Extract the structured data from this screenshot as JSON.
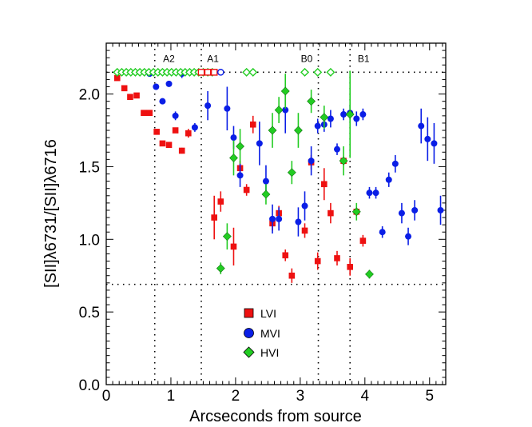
{
  "chart_data": {
    "type": "scatter",
    "xlabel": "Arcseconds from source",
    "ylabel": "[SII]λ6731/[SII]λ6716",
    "xlim": [
      0,
      5.25
    ],
    "ylim": [
      0,
      2.35
    ],
    "xticks": [
      0,
      1,
      2,
      3,
      4,
      5
    ],
    "xtick_labels": [
      "0",
      "1",
      "2",
      "3",
      "4",
      "5"
    ],
    "yticks": [
      0,
      0.5,
      1.0,
      1.5,
      2.0
    ],
    "ytick_labels": [
      "0.0",
      "0.5",
      "1.0",
      "1.5",
      "2.0"
    ],
    "reference_lines": {
      "horizontal": [
        2.15,
        0.69
      ],
      "vertical": [
        0.75,
        1.47,
        3.28,
        3.77
      ]
    },
    "region_labels": [
      {
        "label": "A2",
        "x": 0.97,
        "y": 2.22
      },
      {
        "label": "A1",
        "x": 1.65,
        "y": 2.22
      },
      {
        "label": "B0",
        "x": 3.1,
        "y": 2.22
      },
      {
        "label": "B1",
        "x": 3.98,
        "y": 2.22
      }
    ],
    "legend": {
      "position": "bottom-center",
      "entries": [
        "LVI",
        "MVI",
        "HVI"
      ]
    },
    "series": [
      {
        "name": "LVI",
        "marker": "square",
        "color": "#ee1111",
        "points": [
          {
            "x": 0.17,
            "y": 2.11,
            "err": 0.0
          },
          {
            "x": 0.28,
            "y": 2.04,
            "err": 0.0
          },
          {
            "x": 0.37,
            "y": 1.98,
            "err": 0.0
          },
          {
            "x": 0.47,
            "y": 1.99,
            "err": 0.0
          },
          {
            "x": 0.58,
            "y": 1.87,
            "err": 0.0
          },
          {
            "x": 0.67,
            "y": 1.87,
            "err": 0.0
          },
          {
            "x": 0.78,
            "y": 1.74,
            "err": 0.0
          },
          {
            "x": 0.87,
            "y": 1.66,
            "err": 0.0
          },
          {
            "x": 0.97,
            "y": 1.65,
            "err": 0.0
          },
          {
            "x": 1.07,
            "y": 1.75,
            "err": 0.0
          },
          {
            "x": 1.17,
            "y": 1.61,
            "err": 0.02
          },
          {
            "x": 1.27,
            "y": 1.73,
            "err": 0.03
          },
          {
            "x": 1.67,
            "y": 1.15,
            "err": 0.15
          },
          {
            "x": 1.77,
            "y": 1.26,
            "err": 0.07
          },
          {
            "x": 1.97,
            "y": 0.95,
            "err": 0.13
          },
          {
            "x": 2.07,
            "y": 1.49,
            "err": 0.05
          },
          {
            "x": 2.17,
            "y": 1.34,
            "err": 0.04
          },
          {
            "x": 2.27,
            "y": 1.79,
            "err": 0.06
          },
          {
            "x": 2.57,
            "y": 1.11,
            "err": 0.05
          },
          {
            "x": 2.67,
            "y": 1.18,
            "err": 0.05
          },
          {
            "x": 2.77,
            "y": 0.89,
            "err": 0.04
          },
          {
            "x": 2.87,
            "y": 0.75,
            "err": 0.05
          },
          {
            "x": 3.07,
            "y": 1.06,
            "err": 0.05
          },
          {
            "x": 3.17,
            "y": 1.53,
            "err": 0.05
          },
          {
            "x": 3.27,
            "y": 0.85,
            "err": 0.06
          },
          {
            "x": 3.37,
            "y": 1.38,
            "err": 0.11
          },
          {
            "x": 3.47,
            "y": 1.18,
            "err": 0.07
          },
          {
            "x": 3.57,
            "y": 0.87,
            "err": 0.05
          },
          {
            "x": 3.67,
            "y": 1.54,
            "err": 0.0
          },
          {
            "x": 3.77,
            "y": 0.81,
            "err": 0.06
          },
          {
            "x": 3.87,
            "y": 1.19,
            "err": 0.0
          },
          {
            "x": 3.97,
            "y": 0.99,
            "err": 0.04
          }
        ]
      },
      {
        "name": "MVI",
        "marker": "circle",
        "color": "#0a1ee6",
        "points": [
          {
            "x": 0.67,
            "y": 2.14,
            "err": 0.0
          },
          {
            "x": 0.77,
            "y": 2.05,
            "err": 0.0
          },
          {
            "x": 0.87,
            "y": 1.95,
            "err": 0.0
          },
          {
            "x": 0.97,
            "y": 2.07,
            "err": 0.0
          },
          {
            "x": 1.07,
            "y": 1.85,
            "err": 0.03
          },
          {
            "x": 1.17,
            "y": 2.14,
            "err": 0.03
          },
          {
            "x": 1.37,
            "y": 1.77,
            "err": 0.03
          },
          {
            "x": 1.57,
            "y": 1.92,
            "err": 0.1
          },
          {
            "x": 1.87,
            "y": 1.9,
            "err": 0.15
          },
          {
            "x": 1.97,
            "y": 1.7,
            "err": 0.08
          },
          {
            "x": 2.07,
            "y": 1.44,
            "err": 0.08
          },
          {
            "x": 2.37,
            "y": 1.66,
            "err": 0.15
          },
          {
            "x": 2.47,
            "y": 1.4,
            "err": 0.11
          },
          {
            "x": 2.57,
            "y": 1.14,
            "err": 0.1
          },
          {
            "x": 2.67,
            "y": 1.14,
            "err": 0.08
          },
          {
            "x": 2.77,
            "y": 1.89,
            "err": 0.16
          },
          {
            "x": 2.97,
            "y": 1.12,
            "err": 0.1
          },
          {
            "x": 3.07,
            "y": 1.23,
            "err": 0.1
          },
          {
            "x": 3.17,
            "y": 1.54,
            "err": 0.1
          },
          {
            "x": 3.27,
            "y": 1.78,
            "err": 0.05
          },
          {
            "x": 3.37,
            "y": 1.79,
            "err": 0.05
          },
          {
            "x": 3.47,
            "y": 1.83,
            "err": 0.06
          },
          {
            "x": 3.57,
            "y": 1.62,
            "err": 0.04
          },
          {
            "x": 3.67,
            "y": 1.86,
            "err": 0.04
          },
          {
            "x": 3.77,
            "y": 1.87,
            "err": 0.05
          },
          {
            "x": 3.87,
            "y": 1.83,
            "err": 0.05
          },
          {
            "x": 3.97,
            "y": 1.86,
            "err": 0.04
          },
          {
            "x": 4.07,
            "y": 1.32,
            "err": 0.04
          },
          {
            "x": 4.17,
            "y": 1.32,
            "err": 0.04
          },
          {
            "x": 4.27,
            "y": 1.05,
            "err": 0.04
          },
          {
            "x": 4.37,
            "y": 1.41,
            "err": 0.05
          },
          {
            "x": 4.47,
            "y": 1.52,
            "err": 0.06
          },
          {
            "x": 4.57,
            "y": 1.18,
            "err": 0.07
          },
          {
            "x": 4.67,
            "y": 1.02,
            "err": 0.06
          },
          {
            "x": 4.77,
            "y": 1.2,
            "err": 0.07
          },
          {
            "x": 4.87,
            "y": 1.78,
            "err": 0.12
          },
          {
            "x": 4.97,
            "y": 1.69,
            "err": 0.15
          },
          {
            "x": 5.07,
            "y": 1.66,
            "err": 0.14
          },
          {
            "x": 5.17,
            "y": 1.2,
            "err": 0.1
          }
        ]
      },
      {
        "name": "HVI",
        "marker": "diamond",
        "color": "#22cc22",
        "points": [
          {
            "x": 1.77,
            "y": 0.8,
            "err": 0.04
          },
          {
            "x": 1.87,
            "y": 1.02,
            "err": 0.09
          },
          {
            "x": 1.97,
            "y": 1.56,
            "err": 0.12
          },
          {
            "x": 2.07,
            "y": 1.64,
            "err": 0.12
          },
          {
            "x": 2.47,
            "y": 1.31,
            "err": 0.07
          },
          {
            "x": 2.57,
            "y": 1.75,
            "err": 0.12
          },
          {
            "x": 2.67,
            "y": 1.89,
            "err": 0.09
          },
          {
            "x": 2.77,
            "y": 2.02,
            "err": 0.12
          },
          {
            "x": 2.87,
            "y": 1.46,
            "err": 0.08
          },
          {
            "x": 2.97,
            "y": 1.75,
            "err": 0.12
          },
          {
            "x": 3.17,
            "y": 1.95,
            "err": 0.08
          },
          {
            "x": 3.37,
            "y": 1.84,
            "err": 0.08
          },
          {
            "x": 3.67,
            "y": 1.54,
            "err": 0.1
          },
          {
            "x": 3.77,
            "y": 1.86,
            "err": 0.3
          },
          {
            "x": 3.87,
            "y": 1.19,
            "err": 0.06
          },
          {
            "x": 4.07,
            "y": 0.76,
            "err": 0.03
          }
        ]
      },
      {
        "name": "HVI-limits",
        "marker": "diamond-open",
        "color": "#22cc22",
        "points": [
          {
            "x": 0.17,
            "y": 2.15
          },
          {
            "x": 0.24,
            "y": 2.15
          },
          {
            "x": 0.31,
            "y": 2.15
          },
          {
            "x": 0.38,
            "y": 2.15
          },
          {
            "x": 0.45,
            "y": 2.15
          },
          {
            "x": 0.52,
            "y": 2.15
          },
          {
            "x": 0.59,
            "y": 2.15
          },
          {
            "x": 0.66,
            "y": 2.15
          },
          {
            "x": 0.73,
            "y": 2.15
          },
          {
            "x": 0.8,
            "y": 2.15
          },
          {
            "x": 0.87,
            "y": 2.15
          },
          {
            "x": 0.94,
            "y": 2.15
          },
          {
            "x": 1.01,
            "y": 2.15
          },
          {
            "x": 1.08,
            "y": 2.15
          },
          {
            "x": 1.15,
            "y": 2.15
          },
          {
            "x": 1.22,
            "y": 2.15
          },
          {
            "x": 1.29,
            "y": 2.15
          },
          {
            "x": 1.36,
            "y": 2.15
          },
          {
            "x": 1.43,
            "y": 2.15
          },
          {
            "x": 1.5,
            "y": 2.15
          },
          {
            "x": 1.57,
            "y": 2.15
          },
          {
            "x": 1.64,
            "y": 2.15
          },
          {
            "x": 2.17,
            "y": 2.15
          },
          {
            "x": 2.27,
            "y": 2.15
          },
          {
            "x": 3.07,
            "y": 2.15
          },
          {
            "x": 3.27,
            "y": 2.15
          },
          {
            "x": 3.47,
            "y": 2.15
          }
        ]
      },
      {
        "name": "LVI-limits",
        "marker": "square-open",
        "color": "#ee1111",
        "points": [
          {
            "x": 1.47,
            "y": 2.15
          },
          {
            "x": 1.57,
            "y": 2.15
          },
          {
            "x": 1.67,
            "y": 2.15
          }
        ]
      },
      {
        "name": "MVI-limits",
        "marker": "circle-open",
        "color": "#0a1ee6",
        "points": [
          {
            "x": 1.77,
            "y": 2.15
          }
        ]
      }
    ]
  }
}
